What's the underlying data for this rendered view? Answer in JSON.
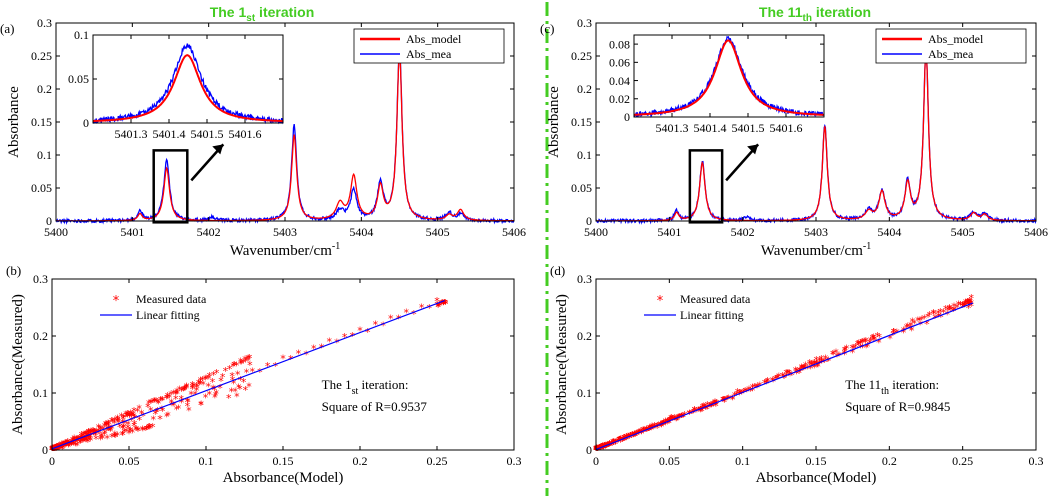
{
  "headers": {
    "left": {
      "pre": "The 1",
      "sub": "st",
      "post": " iteration"
    },
    "right": {
      "pre": "The 11",
      "sub": "th",
      "post": " iteration"
    }
  },
  "colors": {
    "model": "#ff0000",
    "measured": "#0000ff",
    "divider": "#44cc22",
    "header": "#44cc22"
  },
  "chart_data": [
    {
      "id": "a",
      "panel_label": "(a)",
      "type": "line",
      "xlabel": "Wavenumber/cm",
      "xlabel_sup": "-1",
      "ylabel": "Absorbance",
      "xlim": [
        5400,
        5406
      ],
      "ylim": [
        0,
        0.3
      ],
      "xticks": [
        "5400",
        "5401",
        "5402",
        "5403",
        "5404",
        "5405",
        "5406"
      ],
      "yticks": [
        "0",
        "0.05",
        "0.1",
        "0.15",
        "0.2",
        "0.25",
        "0.3"
      ],
      "legend": [
        "Abs_model",
        "Abs_mea"
      ],
      "peaks_measured": [
        [
          5401.1,
          0.015,
          0.035
        ],
        [
          5401.45,
          0.093,
          0.045
        ],
        [
          5402.05,
          0.005,
          0.05
        ],
        [
          5403.12,
          0.145,
          0.04
        ],
        [
          5403.72,
          0.015,
          0.06
        ],
        [
          5403.9,
          0.045,
          0.05
        ],
        [
          5404.25,
          0.057,
          0.045
        ],
        [
          5404.5,
          0.26,
          0.04
        ],
        [
          5405.15,
          0.012,
          0.05
        ],
        [
          5405.3,
          0.01,
          0.05
        ]
      ],
      "peaks_model": [
        [
          5401.1,
          0.01,
          0.035
        ],
        [
          5401.45,
          0.08,
          0.045
        ],
        [
          5403.12,
          0.13,
          0.04
        ],
        [
          5403.72,
          0.025,
          0.06
        ],
        [
          5403.9,
          0.066,
          0.05
        ],
        [
          5404.25,
          0.05,
          0.045
        ],
        [
          5404.5,
          0.255,
          0.04
        ],
        [
          5405.15,
          0.008,
          0.05
        ],
        [
          5405.3,
          0.016,
          0.05
        ]
      ],
      "inset": {
        "xlim": [
          5401.2,
          5401.7
        ],
        "ylim": [
          0,
          0.1
        ],
        "xticks": [
          "5401.3",
          "5401.4",
          "5401.5",
          "5401.6"
        ],
        "yticks": [
          "0",
          "0.05",
          "0.1"
        ],
        "center": 5401.448,
        "width": 0.045,
        "peak_measured": 0.088,
        "peak_model": 0.077
      }
    },
    {
      "id": "c",
      "panel_label": "(c)",
      "type": "line",
      "xlabel": "Wavenumber/cm",
      "xlabel_sup": "-1",
      "ylabel": "Absorbance",
      "xlim": [
        5400,
        5406
      ],
      "ylim": [
        0,
        0.3
      ],
      "xticks": [
        "5400",
        "5401",
        "5402",
        "5403",
        "5404",
        "5405",
        "5406"
      ],
      "yticks": [
        "0",
        "0.05",
        "0.1",
        "0.15",
        "0.2",
        "0.25",
        "0.3"
      ],
      "legend": [
        "Abs_model",
        "Abs_mea"
      ],
      "peaks_measured": [
        [
          5401.1,
          0.015,
          0.035
        ],
        [
          5401.45,
          0.09,
          0.045
        ],
        [
          5402.05,
          0.005,
          0.05
        ],
        [
          5403.12,
          0.145,
          0.04
        ],
        [
          5403.72,
          0.015,
          0.06
        ],
        [
          5403.9,
          0.045,
          0.05
        ],
        [
          5404.25,
          0.057,
          0.045
        ],
        [
          5404.5,
          0.26,
          0.04
        ],
        [
          5405.15,
          0.012,
          0.05
        ],
        [
          5405.3,
          0.01,
          0.05
        ]
      ],
      "peaks_model": [
        [
          5401.1,
          0.012,
          0.035
        ],
        [
          5401.45,
          0.088,
          0.045
        ],
        [
          5403.12,
          0.143,
          0.04
        ],
        [
          5403.72,
          0.013,
          0.06
        ],
        [
          5403.9,
          0.043,
          0.05
        ],
        [
          5404.25,
          0.055,
          0.045
        ],
        [
          5404.5,
          0.258,
          0.04
        ],
        [
          5405.15,
          0.011,
          0.05
        ],
        [
          5405.3,
          0.009,
          0.05
        ]
      ],
      "inset": {
        "xlim": [
          5401.2,
          5401.7
        ],
        "ylim": [
          0,
          0.09
        ],
        "xticks": [
          "5401.3",
          "5401.4",
          "5401.5",
          "5401.6"
        ],
        "yticks": [
          "0",
          "0.02",
          "0.04",
          "0.06",
          "0.08"
        ],
        "center": 5401.448,
        "width": 0.045,
        "peak_measured": 0.086,
        "peak_model": 0.084
      }
    },
    {
      "id": "b",
      "panel_label": "(b)",
      "type": "scatter",
      "xlabel": "Absorbance(Model)",
      "ylabel": "Absorbance(Measured)",
      "xlim": [
        0,
        0.3
      ],
      "ylim": [
        0,
        0.3
      ],
      "xticks": [
        "0",
        "0.05",
        "0.1",
        "0.15",
        "0.2",
        "0.25",
        "0.3"
      ],
      "yticks": [
        "0",
        "0.1",
        "0.2",
        "0.3"
      ],
      "legend": [
        "Measured data",
        "Linear fitting"
      ],
      "annotation": {
        "pre": "The 1",
        "sub": "st",
        "post": " iteration:",
        "line2": "Square of R=0.9537"
      },
      "fit": {
        "slope": 1.02,
        "intercept": 0.002,
        "x_range": [
          0,
          0.255
        ]
      },
      "branch_upper": {
        "slope": 1.25,
        "x_max": 0.13
      },
      "branch_lower": {
        "slope": 0.62,
        "x_max": 0.066
      },
      "tail_x": [
        0.13,
        0.14,
        0.15,
        0.16,
        0.17,
        0.18,
        0.19,
        0.2,
        0.21,
        0.22,
        0.23,
        0.24,
        0.25
      ]
    },
    {
      "id": "d",
      "panel_label": "(d)",
      "type": "scatter",
      "xlabel": "Absorbance(Model)",
      "ylabel": "Absorbance(Measured)",
      "xlim": [
        0,
        0.3
      ],
      "ylim": [
        0,
        0.3
      ],
      "xticks": [
        "0",
        "0.05",
        "0.1",
        "0.15",
        "0.2",
        "0.25",
        "0.3"
      ],
      "yticks": [
        "0",
        "0.1",
        "0.2",
        "0.3"
      ],
      "legend": [
        "Measured data",
        "Linear fitting"
      ],
      "annotation": {
        "pre": "The 11",
        "sub": "th",
        "post": " iteration:",
        "line2": "Square of R=0.9845"
      },
      "fit": {
        "slope": 1.0,
        "intercept": 0.001,
        "x_range": [
          0,
          0.257
        ]
      },
      "branch_upper": {
        "slope": 1.03,
        "x_max": 0.257
      },
      "branch_lower": {
        "slope": 0.97,
        "x_max": 0.1
      },
      "tail_x": []
    }
  ]
}
